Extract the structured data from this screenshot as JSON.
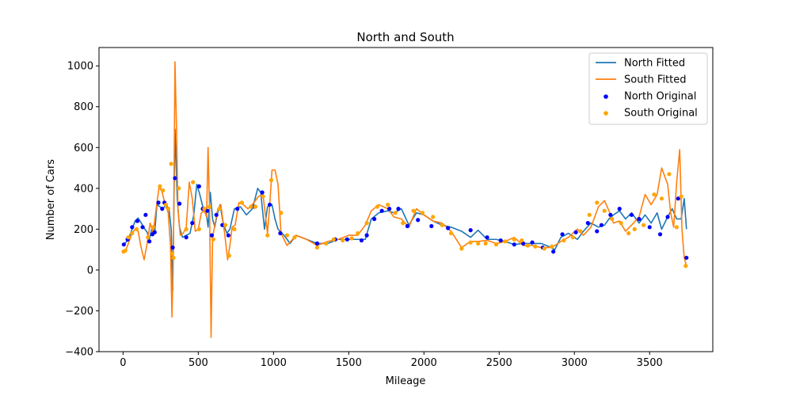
{
  "chart_data": {
    "type": "line",
    "title": "North and South",
    "xlabel": "Mileage",
    "ylabel": "Number of Cars",
    "xlim": [
      -160,
      3920
    ],
    "ylim": [
      -400,
      1090
    ],
    "xticks": [
      0,
      500,
      1000,
      1500,
      2000,
      2500,
      3000,
      3500
    ],
    "yticks": [
      -400,
      -200,
      0,
      200,
      400,
      600,
      800,
      1000
    ],
    "legend_position": "top-right",
    "grid": false,
    "series": [
      {
        "name": "North Fitted",
        "kind": "line",
        "color": "#1f77b4",
        "x": [
          0,
          25,
          40,
          60,
          80,
          100,
          125,
          145,
          160,
          175,
          190,
          210,
          225,
          245,
          265,
          285,
          305,
          320,
          330,
          345,
          360,
          375,
          395,
          420,
          445,
          470,
          490,
          510,
          530,
          550,
          565,
          580,
          595,
          610,
          625,
          645,
          665,
          690,
          710,
          740,
          780,
          820,
          860,
          895,
          915,
          940,
          960,
          990,
          1010,
          1030,
          1070,
          1110,
          1150,
          1220,
          1290,
          1360,
          1430,
          1510,
          1560,
          1610,
          1650,
          1700,
          1760,
          1800,
          1850,
          1900,
          1950,
          2000,
          2060,
          2120,
          2180,
          2250,
          2310,
          2360,
          2420,
          2480,
          2540,
          2600,
          2660,
          2720,
          2780,
          2830,
          2870,
          2910,
          2960,
          3020,
          3060,
          3110,
          3160,
          3200,
          3230,
          3260,
          3300,
          3340,
          3380,
          3430,
          3470,
          3510,
          3550,
          3580,
          3620,
          3650,
          3680,
          3710,
          3730,
          3745
        ],
        "y": [
          125,
          140,
          160,
          200,
          240,
          255,
          225,
          200,
          185,
          150,
          200,
          180,
          320,
          310,
          300,
          320,
          300,
          200,
          -100,
          690,
          350,
          210,
          160,
          170,
          180,
          270,
          420,
          370,
          310,
          300,
          210,
          380,
          250,
          210,
          270,
          320,
          230,
          180,
          200,
          300,
          310,
          270,
          300,
          400,
          380,
          200,
          310,
          320,
          250,
          200,
          170,
          130,
          170,
          150,
          130,
          130,
          150,
          150,
          150,
          150,
          250,
          280,
          290,
          280,
          300,
          220,
          280,
          270,
          240,
          220,
          210,
          190,
          160,
          195,
          150,
          150,
          140,
          125,
          130,
          130,
          130,
          115,
          100,
          160,
          180,
          150,
          190,
          230,
          210,
          220,
          250,
          270,
          290,
          250,
          280,
          230,
          270,
          230,
          280,
          200,
          260,
          300,
          250,
          250,
          350,
          200
        ]
      },
      {
        "name": "South Fitted",
        "kind": "line",
        "color": "#ff7f0e",
        "x": [
          0,
          20,
          40,
          60,
          80,
          100,
          120,
          140,
          160,
          180,
          200,
          220,
          240,
          260,
          280,
          300,
          315,
          325,
          335,
          345,
          355,
          365,
          380,
          400,
          420,
          440,
          460,
          480,
          500,
          520,
          540,
          555,
          565,
          575,
          585,
          595,
          610,
          630,
          650,
          675,
          695,
          710,
          725,
          745,
          770,
          800,
          830,
          870,
          900,
          930,
          960,
          975,
          990,
          1010,
          1030,
          1050,
          1090,
          1150,
          1220,
          1290,
          1360,
          1430,
          1500,
          1560,
          1610,
          1650,
          1700,
          1760,
          1800,
          1850,
          1900,
          1950,
          2000,
          2060,
          2120,
          2180,
          2250,
          2310,
          2360,
          2420,
          2480,
          2540,
          2600,
          2660,
          2720,
          2780,
          2830,
          2870,
          2910,
          2960,
          3020,
          3060,
          3110,
          3160,
          3200,
          3230,
          3260,
          3300,
          3340,
          3380,
          3430,
          3470,
          3510,
          3550,
          3580,
          3620,
          3640,
          3660,
          3680,
          3700,
          3715,
          3730,
          3745
        ],
        "y": [
          90,
          100,
          140,
          180,
          200,
          190,
          110,
          50,
          130,
          230,
          180,
          300,
          410,
          380,
          320,
          280,
          120,
          -230,
          100,
          1020,
          700,
          300,
          170,
          180,
          210,
          430,
          350,
          190,
          200,
          280,
          290,
          260,
          600,
          300,
          -330,
          160,
          220,
          300,
          320,
          180,
          50,
          120,
          210,
          220,
          330,
          320,
          300,
          330,
          360,
          370,
          180,
          320,
          490,
          490,
          420,
          180,
          120,
          170,
          150,
          120,
          140,
          150,
          170,
          170,
          220,
          290,
          320,
          300,
          260,
          250,
          210,
          300,
          270,
          240,
          230,
          190,
          110,
          140,
          140,
          145,
          130,
          140,
          160,
          120,
          120,
          110,
          110,
          120,
          140,
          160,
          200,
          170,
          210,
          310,
          340,
          290,
          230,
          240,
          190,
          220,
          260,
          370,
          320,
          370,
          500,
          420,
          280,
          210,
          430,
          590,
          200,
          60,
          20
        ]
      },
      {
        "name": "North Original",
        "kind": "scatter",
        "color": "#0000ff",
        "x": [
          5,
          30,
          60,
          95,
          130,
          150,
          175,
          195,
          210,
          235,
          260,
          275,
          330,
          345,
          375,
          420,
          460,
          505,
          530,
          560,
          590,
          620,
          660,
          700,
          760,
          875,
          925,
          975,
          1045,
          1290,
          1410,
          1490,
          1585,
          1620,
          1670,
          1720,
          1770,
          1830,
          1890,
          1960,
          2050,
          2160,
          2310,
          2420,
          2510,
          2600,
          2660,
          2720,
          2790,
          2860,
          2920,
          3010,
          3090,
          3150,
          3180,
          3240,
          3300,
          3380,
          3430,
          3500,
          3570,
          3620,
          3690,
          3745
        ],
        "y": [
          125,
          150,
          210,
          240,
          210,
          270,
          140,
          175,
          185,
          330,
          300,
          330,
          110,
          450,
          325,
          160,
          230,
          410,
          300,
          290,
          170,
          270,
          220,
          170,
          300,
          310,
          380,
          320,
          180,
          130,
          150,
          150,
          145,
          170,
          250,
          290,
          300,
          300,
          215,
          245,
          215,
          205,
          195,
          160,
          145,
          125,
          130,
          135,
          110,
          90,
          175,
          185,
          230,
          190,
          220,
          270,
          300,
          270,
          250,
          210,
          175,
          260,
          350,
          60
        ]
      },
      {
        "name": "South Original",
        "kind": "scatter",
        "color": "#ffa500",
        "x": [
          3,
          15,
          35,
          60,
          90,
          165,
          200,
          245,
          265,
          285,
          300,
          320,
          325,
          335,
          370,
          420,
          465,
          505,
          540,
          575,
          600,
          640,
          680,
          705,
          740,
          790,
          850,
          880,
          930,
          960,
          985,
          1050,
          1090,
          1140,
          1290,
          1350,
          1400,
          1460,
          1520,
          1560,
          1620,
          1690,
          1760,
          1810,
          1860,
          1930,
          1990,
          2060,
          2120,
          2180,
          2250,
          2310,
          2360,
          2410,
          2480,
          2540,
          2600,
          2650,
          2690,
          2740,
          2800,
          2850,
          2930,
          2990,
          3040,
          3100,
          3150,
          3200,
          3250,
          3310,
          3360,
          3400,
          3460,
          3530,
          3580,
          3630,
          3680,
          3710,
          3740
        ],
        "y": [
          90,
          95,
          160,
          180,
          200,
          160,
          210,
          410,
          390,
          320,
          300,
          520,
          80,
          60,
          400,
          200,
          430,
          200,
          300,
          310,
          150,
          300,
          220,
          70,
          200,
          330,
          310,
          310,
          360,
          170,
          440,
          280,
          170,
          160,
          110,
          130,
          150,
          145,
          155,
          180,
          230,
          310,
          320,
          280,
          230,
          290,
          280,
          260,
          220,
          180,
          105,
          135,
          130,
          130,
          125,
          140,
          150,
          145,
          120,
          115,
          105,
          115,
          145,
          160,
          190,
          270,
          330,
          290,
          250,
          230,
          180,
          200,
          220,
          370,
          350,
          470,
          210,
          360,
          20
        ]
      }
    ]
  }
}
